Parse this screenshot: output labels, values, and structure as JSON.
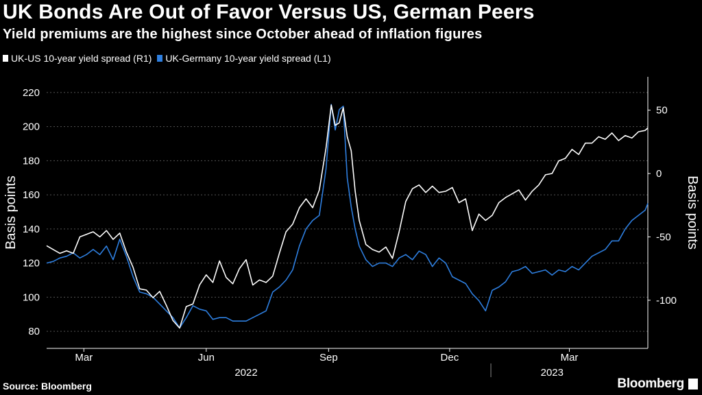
{
  "title": "UK Bonds Are Out of Favor Versus US, German Peers",
  "subtitle": "Yield premiums are the highest since October ahead of inflation figures",
  "source": "Source: Bloomberg",
  "brand": "Bloomberg",
  "colors": {
    "background": "#000000",
    "series_white": "#ffffff",
    "series_blue": "#2e7fe0",
    "grid": "#555555"
  },
  "chart_data": {
    "type": "line",
    "x_unit": "days since 2022-01-31",
    "x_ticks": [
      {
        "label": "Mar",
        "x": 28
      },
      {
        "label": "Jun",
        "x": 120
      },
      {
        "label": "Sep",
        "x": 212
      },
      {
        "label": "Dec",
        "x": 303
      },
      {
        "label": "Mar",
        "x": 393
      }
    ],
    "year_labels": [
      {
        "label": "2022",
        "x": 150
      },
      {
        "label": "2023",
        "x": 380
      }
    ],
    "year_divider_x": 334,
    "xlim": [
      0,
      452
    ],
    "left_axis": {
      "label": "Basis points",
      "ylim": [
        70,
        226
      ],
      "ticks": [
        80,
        100,
        120,
        140,
        160,
        180,
        200,
        220
      ]
    },
    "right_axis": {
      "label": "Basis points",
      "ylim": [
        -138,
        72
      ],
      "ticks": [
        -100,
        -50,
        0,
        50
      ]
    },
    "series": [
      {
        "name": "UK-US 10-year yield spread (R1)",
        "axis": "right",
        "color": "#ffffff",
        "x": [
          0,
          5,
          10,
          15,
          20,
          25,
          30,
          35,
          40,
          45,
          50,
          55,
          60,
          65,
          70,
          75,
          80,
          85,
          90,
          95,
          100,
          105,
          110,
          115,
          120,
          125,
          130,
          135,
          140,
          145,
          150,
          155,
          160,
          165,
          170,
          175,
          180,
          185,
          190,
          195,
          200,
          205,
          210,
          214,
          217,
          220,
          223,
          226,
          229,
          232,
          235,
          240,
          245,
          250,
          255,
          260,
          265,
          270,
          275,
          280,
          285,
          290,
          295,
          300,
          305,
          310,
          315,
          320,
          325,
          330,
          335,
          340,
          345,
          350,
          355,
          360,
          365,
          370,
          375,
          380,
          385,
          390,
          395,
          400,
          405,
          410,
          415,
          420,
          425,
          430,
          435,
          440,
          445,
          450,
          452
        ],
        "values": [
          -57,
          -60,
          -63,
          -61,
          -63,
          -50,
          -48,
          -46,
          -50,
          -45,
          -52,
          -47,
          -62,
          -74,
          -91,
          -92,
          -98,
          -93,
          -104,
          -116,
          -122,
          -105,
          -103,
          -88,
          -80,
          -86,
          -69,
          -82,
          -87,
          -75,
          -68,
          -88,
          -84,
          -86,
          -81,
          -63,
          -46,
          -40,
          -27,
          -20,
          -27,
          -13,
          20,
          54,
          38,
          40,
          52,
          29,
          18,
          -14,
          -37,
          -56,
          -60,
          -62,
          -58,
          -67,
          -46,
          -22,
          -12,
          -9,
          -15,
          -10,
          -15,
          -14,
          -11,
          -23,
          -20,
          -45,
          -32,
          -37,
          -33,
          -23,
          -19,
          -16,
          -13,
          -21,
          -14,
          -9,
          -1,
          0,
          10,
          12,
          19,
          15,
          24,
          24,
          29,
          27,
          32,
          26,
          30,
          28,
          33,
          34,
          36
        ]
      },
      {
        "name": "UK-Germany 10-year yield spread (L1)",
        "axis": "left",
        "color": "#2e7fe0",
        "x": [
          0,
          5,
          10,
          15,
          20,
          25,
          30,
          35,
          40,
          45,
          50,
          55,
          60,
          65,
          70,
          75,
          80,
          85,
          90,
          95,
          100,
          105,
          110,
          115,
          120,
          125,
          130,
          135,
          140,
          145,
          150,
          155,
          160,
          165,
          170,
          175,
          180,
          185,
          190,
          195,
          200,
          205,
          210,
          214,
          217,
          220,
          223,
          226,
          229,
          232,
          235,
          240,
          245,
          250,
          255,
          260,
          265,
          270,
          275,
          280,
          285,
          290,
          295,
          300,
          305,
          310,
          315,
          320,
          325,
          330,
          335,
          340,
          345,
          350,
          355,
          360,
          365,
          370,
          375,
          380,
          385,
          390,
          395,
          400,
          405,
          410,
          415,
          420,
          425,
          430,
          435,
          440,
          445,
          450,
          452
        ],
        "values": [
          120,
          121,
          123,
          124,
          126,
          123,
          125,
          128,
          125,
          130,
          122,
          134,
          124,
          112,
          103,
          102,
          100,
          96,
          92,
          88,
          82,
          88,
          95,
          93,
          92,
          87,
          88,
          88,
          86,
          86,
          86,
          88,
          90,
          92,
          103,
          106,
          110,
          116,
          130,
          140,
          145,
          148,
          175,
          213,
          198,
          210,
          212,
          170,
          153,
          140,
          130,
          122,
          118,
          120,
          120,
          118,
          123,
          125,
          122,
          127,
          125,
          118,
          123,
          120,
          112,
          110,
          108,
          102,
          98,
          92,
          104,
          106,
          109,
          115,
          116,
          118,
          114,
          115,
          116,
          113,
          116,
          115,
          118,
          116,
          120,
          124,
          126,
          128,
          133,
          133,
          140,
          145,
          148,
          151,
          155
        ]
      }
    ]
  }
}
